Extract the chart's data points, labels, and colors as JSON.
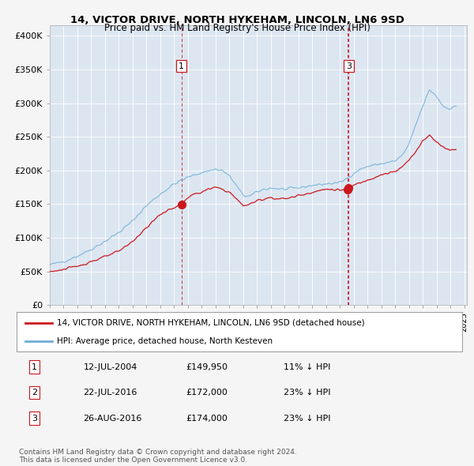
{
  "title": "14, VICTOR DRIVE, NORTH HYKEHAM, LINCOLN, LN6 9SD",
  "subtitle": "Price paid vs. HM Land Registry's House Price Index (HPI)",
  "ylabel_ticks": [
    "£0",
    "£50K",
    "£100K",
    "£150K",
    "£200K",
    "£250K",
    "£300K",
    "£350K",
    "£400K"
  ],
  "ytick_vals": [
    0,
    50000,
    100000,
    150000,
    200000,
    250000,
    300000,
    350000,
    400000
  ],
  "ylim": [
    0,
    415000
  ],
  "xlim_start": 1995.0,
  "xlim_end": 2025.2,
  "sale_dates_num": [
    2004.535,
    2016.548,
    2016.647
  ],
  "sale_prices": [
    149950,
    172000,
    174000
  ],
  "sale_labels_chart": [
    "1",
    "3"
  ],
  "sale_indices_chart": [
    0,
    2
  ],
  "hpi_line_color": "#6baed6",
  "price_line_color": "#cb181d",
  "marker_color": "#cb181d",
  "vline_color": "#cb181d",
  "bg_plot": "#dce6f1",
  "bg_fig": "#f5f5f5",
  "grid_color": "#ffffff",
  "legend_entries": [
    "14, VICTOR DRIVE, NORTH HYKEHAM, LINCOLN, LN6 9SD (detached house)",
    "HPI: Average price, detached house, North Kesteven"
  ],
  "table_data": [
    [
      "1",
      "12-JUL-2004",
      "£149,950",
      "11% ↓ HPI"
    ],
    [
      "2",
      "22-JUL-2016",
      "£172,000",
      "23% ↓ HPI"
    ],
    [
      "3",
      "26-AUG-2016",
      "£174,000",
      "23% ↓ HPI"
    ]
  ],
  "copyright_text": "Contains HM Land Registry data © Crown copyright and database right 2024.\nThis data is licensed under the Open Government Licence v3.0."
}
